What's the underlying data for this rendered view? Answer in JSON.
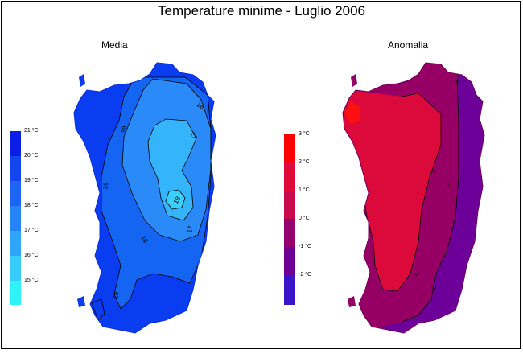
{
  "title": "Temperature minime - Luglio 2006",
  "panels": {
    "left": {
      "subtitle": "Media"
    },
    "right": {
      "subtitle": "Anomalia"
    }
  },
  "legend_left": {
    "labels": [
      "21 °C",
      "20 °C",
      "19 °C",
      "18 °C",
      "17 °C",
      "16 °C",
      "15 °C"
    ],
    "colors": [
      "#0a1ee6",
      "#1446f0",
      "#1e64f5",
      "#2882f8",
      "#30a6fa",
      "#38ccfc",
      "#30f2f8"
    ]
  },
  "legend_right": {
    "labels": [
      "3 °C",
      "2 °C",
      "1 °C",
      "0 °C",
      "-1 °C",
      "-2 °C"
    ],
    "colors": [
      "#ff0000",
      "#e00a3a",
      "#c80a4e",
      "#96006e",
      "#6e0096",
      "#3a14c8",
      "#1a10ff"
    ]
  },
  "map_media": {
    "colors": {
      "outer": "#0a3cf0",
      "band19": "#1466f2",
      "band18": "#2a8af8",
      "band17": "#34b4fa",
      "core": "#3ad0fc"
    },
    "contour_labels": [
      "16",
      "17",
      "18",
      "19",
      "19",
      "16",
      "17",
      "19"
    ]
  },
  "map_anomalia": {
    "colors": {
      "west": "#dc0a3a",
      "mid": "#960064",
      "east": "#6e009a",
      "hot": "#ff1010"
    },
    "contour_labels": [
      "0",
      "1",
      "0",
      "1",
      "0"
    ]
  }
}
